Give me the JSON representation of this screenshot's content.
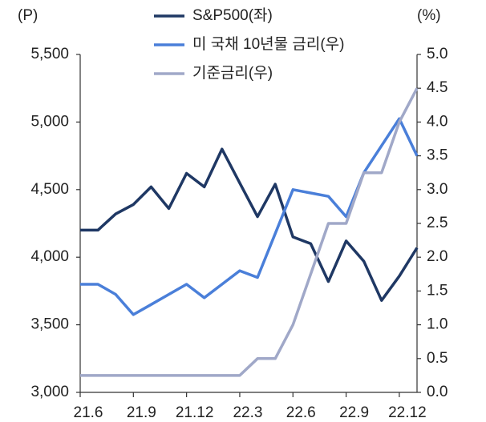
{
  "chart_data": {
    "type": "line",
    "y_unit": "(P)",
    "y2_unit": "(%)",
    "categories": [
      "21.6",
      null,
      null,
      "21.9",
      null,
      null,
      "21.12",
      null,
      null,
      "22.3",
      null,
      null,
      "22.6",
      null,
      null,
      "22.9",
      null,
      null,
      "22.12",
      null
    ],
    "series": [
      {
        "name": "S&P500(좌)",
        "color": "#1f3864",
        "axis": "y",
        "values": [
          4200,
          4200,
          4320,
          4390,
          4520,
          4360,
          4620,
          4520,
          4800,
          4550,
          4300,
          4540,
          4150,
          4100,
          3820,
          4120,
          3970,
          3680,
          3860,
          4070
        ]
      },
      {
        "name": "미 국채 10년물 금리(우)",
        "color": "#4a7fd9",
        "axis": "y2",
        "values": [
          1.6,
          1.6,
          1.45,
          1.15,
          1.3,
          1.45,
          1.6,
          1.4,
          1.6,
          1.8,
          1.7,
          2.35,
          3.0,
          2.95,
          2.9,
          2.6,
          3.25,
          3.65,
          4.05,
          3.5
        ]
      },
      {
        "name": "기준금리(우)",
        "color": "#a0a8c8",
        "axis": "y2",
        "values": [
          0.25,
          0.25,
          0.25,
          0.25,
          0.25,
          0.25,
          0.25,
          0.25,
          0.25,
          0.25,
          0.5,
          0.5,
          1.0,
          1.75,
          2.5,
          2.5,
          3.25,
          3.25,
          4.0,
          4.5
        ]
      }
    ],
    "ylim": [
      3000,
      5500
    ],
    "yticks": [
      {
        "value": 3000,
        "label": "3,000"
      },
      {
        "value": 3500,
        "label": "3,500"
      },
      {
        "value": 4000,
        "label": "4,000"
      },
      {
        "value": 4500,
        "label": "4,500"
      },
      {
        "value": 5000,
        "label": "5,000"
      },
      {
        "value": 5500,
        "label": "5,500"
      }
    ],
    "y2lim": [
      0,
      5
    ],
    "y2ticks": [
      {
        "value": 0,
        "label": "0.0"
      },
      0.5,
      {
        "value": 1,
        "label": "1.0"
      },
      1.5,
      {
        "value": 2,
        "label": "2.0"
      },
      2.5,
      {
        "value": 3,
        "label": "3.0"
      },
      3.5,
      {
        "value": 4,
        "label": "4.0"
      },
      4.5,
      {
        "value": 5,
        "label": "5.0"
      }
    ],
    "legend": "top"
  }
}
